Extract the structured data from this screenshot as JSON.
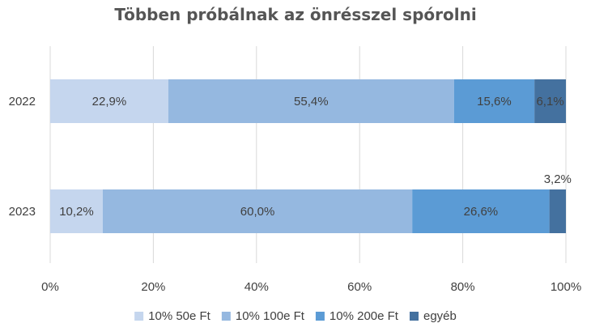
{
  "chart_data": {
    "type": "bar",
    "orientation": "horizontal",
    "stacked": "percent",
    "title": "Többen próbálnak az önrésszel spórolni",
    "categories": [
      "2022",
      "2023"
    ],
    "series": [
      {
        "name": "10% 50e Ft",
        "values": [
          22.9,
          10.2
        ],
        "labels": [
          "22,9%",
          "10,2%"
        ],
        "color": "#c5d6ee"
      },
      {
        "name": "10% 100e Ft",
        "values": [
          55.4,
          60.0
        ],
        "labels": [
          "55,4%",
          "60,0%"
        ],
        "color": "#95b8e0"
      },
      {
        "name": "10% 200e Ft",
        "values": [
          15.6,
          26.6
        ],
        "labels": [
          "15,6%",
          "26,6%"
        ],
        "color": "#5b9bd5"
      },
      {
        "name": "egyéb",
        "values": [
          6.1,
          3.2
        ],
        "labels": [
          "6,1%",
          "3,2%"
        ],
        "color": "#44719f"
      }
    ],
    "xlim": [
      0,
      100
    ],
    "xticks": [
      "0%",
      "20%",
      "40%",
      "60%",
      "80%",
      "100%"
    ],
    "grid": true,
    "legend": "bottom"
  }
}
